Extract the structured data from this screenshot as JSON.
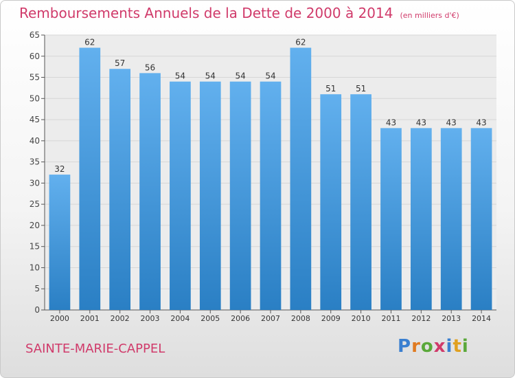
{
  "title": "Remboursements Annuels de la Dette de 2000 à 2014",
  "unit_note": "(en milliers d'€)",
  "commune": "SAINTE-MARIE-CAPPEL",
  "logo": {
    "text": "Proxiti",
    "letters": [
      {
        "ch": "P",
        "color": "#3a7fd0"
      },
      {
        "ch": "r",
        "color": "#e07a20"
      },
      {
        "ch": "o",
        "color": "#5aa83a"
      },
      {
        "ch": "x",
        "color": "#d03a6a"
      },
      {
        "ch": "i",
        "color": "#3a7fd0"
      },
      {
        "ch": "t",
        "color": "#e0a020"
      },
      {
        "ch": "i",
        "color": "#5aa83a"
      }
    ]
  },
  "colors": {
    "bar_top": "#62b0ee",
    "bar_bottom": "#2a7fc4",
    "title": "#d03a6a",
    "grid": "#d6d6d6"
  },
  "chart_data": {
    "type": "bar",
    "categories": [
      "2000",
      "2001",
      "2002",
      "2003",
      "2004",
      "2005",
      "2006",
      "2007",
      "2008",
      "2009",
      "2010",
      "2011",
      "2012",
      "2013",
      "2014"
    ],
    "values": [
      32,
      62,
      57,
      56,
      54,
      54,
      54,
      54,
      62,
      51,
      51,
      43,
      43,
      43,
      43
    ],
    "data_labels": [
      "32",
      "62",
      "57",
      "56",
      "54",
      "54",
      "54",
      "54",
      "62",
      "51",
      "51",
      "43",
      "43",
      "43",
      "43"
    ],
    "title": "Remboursements Annuels de la Dette de 2000 à 2014",
    "xlabel": "",
    "ylabel": "",
    "ylim": [
      0,
      65
    ],
    "yticks": [
      0,
      5,
      10,
      15,
      20,
      25,
      30,
      35,
      40,
      45,
      50,
      55,
      60,
      65
    ],
    "grid": true
  }
}
